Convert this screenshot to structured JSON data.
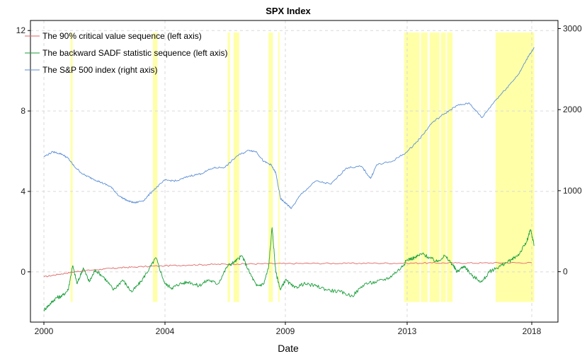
{
  "chart_data": {
    "type": "line",
    "title": "SPX Index",
    "xlabel": "Date",
    "ylabel": "",
    "ylabel_right": "",
    "x_ticks": [
      "2000",
      "2004",
      "2009",
      "2013",
      "2018"
    ],
    "x_tick_years": [
      2000,
      2004,
      2009,
      2013,
      2018
    ],
    "xlim": [
      2000,
      2018
    ],
    "y_left": {
      "ticks": [
        0,
        4,
        8,
        12
      ],
      "tick_labels": [
        "0",
        "4",
        "8",
        "12"
      ],
      "lim": [
        -2.5,
        12.5
      ]
    },
    "y_right": {
      "ticks": [
        0,
        1000,
        2000,
        3000
      ],
      "tick_labels": [
        "0",
        "1000",
        "2000",
        "3000"
      ],
      "lim": [
        -622,
        3100
      ]
    },
    "grid": true,
    "legend_position": "top-left",
    "legend": [
      {
        "label": "The 90% critical value sequence (left axis)",
        "color": "#e06666"
      },
      {
        "label": "The backward SADF statistic sequence (left axis)",
        "color": "#1a9e3a"
      },
      {
        "label": "The S&P 500 index (right axis)",
        "color": "#5b8ed6"
      }
    ],
    "shaded_periods": [
      [
        2000.88,
        2000.95
      ],
      [
        2003.6,
        2003.75
      ],
      [
        2006.6,
        2006.7
      ],
      [
        2006.85,
        2007.08
      ],
      [
        2008.3,
        2008.48
      ],
      [
        2008.7,
        2008.76
      ],
      [
        2012.9,
        2013.5
      ],
      [
        2013.55,
        2013.82
      ],
      [
        2013.9,
        2014.3
      ],
      [
        2014.35,
        2014.55
      ],
      [
        2014.6,
        2014.82
      ],
      [
        2016.55,
        2018.1
      ]
    ],
    "shade_color": "#ffff99",
    "series": [
      {
        "name": "The 90% critical value sequence (left axis)",
        "axis": "left",
        "color": "#e06666",
        "x": [
          2000,
          2000.5,
          2001,
          2001.5,
          2002,
          2002.5,
          2003,
          2004,
          2005,
          2006,
          2007,
          2008,
          2009,
          2010,
          2011,
          2012,
          2013,
          2014,
          2015,
          2016,
          2017,
          2018
        ],
        "values": [
          -0.25,
          -0.12,
          0.0,
          0.08,
          0.14,
          0.2,
          0.24,
          0.3,
          0.34,
          0.37,
          0.39,
          0.4,
          0.41,
          0.42,
          0.42,
          0.43,
          0.43,
          0.44,
          0.44,
          0.44,
          0.45,
          0.45
        ]
      },
      {
        "name": "The backward SADF statistic sequence (left axis)",
        "axis": "left",
        "color": "#1a9e3a",
        "x": [
          2000,
          2000.2,
          2000.4,
          2000.6,
          2000.8,
          2000.95,
          2001.1,
          2001.3,
          2001.5,
          2001.7,
          2002,
          2002.3,
          2002.6,
          2002.9,
          2003.2,
          2003.5,
          2003.7,
          2004,
          2004.3,
          2004.6,
          2005,
          2005.4,
          2005.8,
          2006.2,
          2006.6,
          2006.9,
          2007.2,
          2007.5,
          2007.8,
          2008.1,
          2008.3,
          2008.45,
          2008.6,
          2008.8,
          2009,
          2009.3,
          2009.6,
          2010,
          2010.4,
          2010.8,
          2011.2,
          2011.6,
          2012,
          2012.4,
          2012.8,
          2013,
          2013.3,
          2013.6,
          2013.9,
          2014.2,
          2014.5,
          2014.8,
          2015,
          2015.3,
          2015.6,
          2016,
          2016.3,
          2016.6,
          2016.9,
          2017.2,
          2017.5,
          2017.8,
          2017.95,
          2018.1
        ],
        "values": [
          -1.9,
          -1.6,
          -1.3,
          -1.2,
          -0.9,
          0.3,
          -0.6,
          0.2,
          -0.5,
          0.1,
          -0.3,
          -0.9,
          -0.4,
          -1.0,
          -0.5,
          0.2,
          0.7,
          -0.6,
          -0.8,
          -0.6,
          -0.5,
          -0.7,
          -0.4,
          -0.6,
          0.3,
          0.5,
          0.8,
          0.0,
          -0.7,
          -0.6,
          0.2,
          2.2,
          0.0,
          -0.9,
          -0.4,
          -0.8,
          -0.6,
          -0.7,
          -0.9,
          -1.0,
          -1.2,
          -0.6,
          -0.5,
          -0.3,
          0.2,
          0.6,
          0.7,
          0.9,
          0.7,
          0.5,
          0.8,
          0.4,
          0.0,
          0.3,
          -0.2,
          -0.5,
          0.0,
          0.2,
          0.4,
          0.6,
          0.9,
          1.5,
          2.1,
          1.3
        ]
      },
      {
        "name": "The S&P 500 index (right axis)",
        "axis": "right",
        "color": "#5b8ed6",
        "x": [
          2000,
          2000.3,
          2000.6,
          2000.8,
          2001,
          2001.3,
          2001.6,
          2001.9,
          2002.2,
          2002.5,
          2002.8,
          2003,
          2003.3,
          2003.6,
          2004,
          2004.5,
          2005,
          2005.5,
          2006,
          2006.5,
          2007,
          2007.5,
          2007.8,
          2008.1,
          2008.4,
          2008.6,
          2008.8,
          2009,
          2009.2,
          2009.5,
          2010,
          2010.5,
          2011,
          2011.5,
          2011.8,
          2012,
          2012.5,
          2013,
          2013.5,
          2014,
          2014.5,
          2015,
          2015.5,
          2016,
          2016.5,
          2017,
          2017.5,
          2017.9,
          2018.1
        ],
        "values": [
          1420,
          1480,
          1450,
          1400,
          1300,
          1200,
          1150,
          1100,
          1050,
          930,
          870,
          850,
          880,
          1000,
          1130,
          1120,
          1180,
          1210,
          1280,
          1290,
          1430,
          1500,
          1480,
          1360,
          1320,
          1220,
          900,
          850,
          780,
          950,
          1120,
          1080,
          1280,
          1300,
          1150,
          1320,
          1360,
          1480,
          1640,
          1840,
          1950,
          2050,
          2080,
          1900,
          2100,
          2270,
          2450,
          2680,
          2760
        ]
      }
    ]
  }
}
